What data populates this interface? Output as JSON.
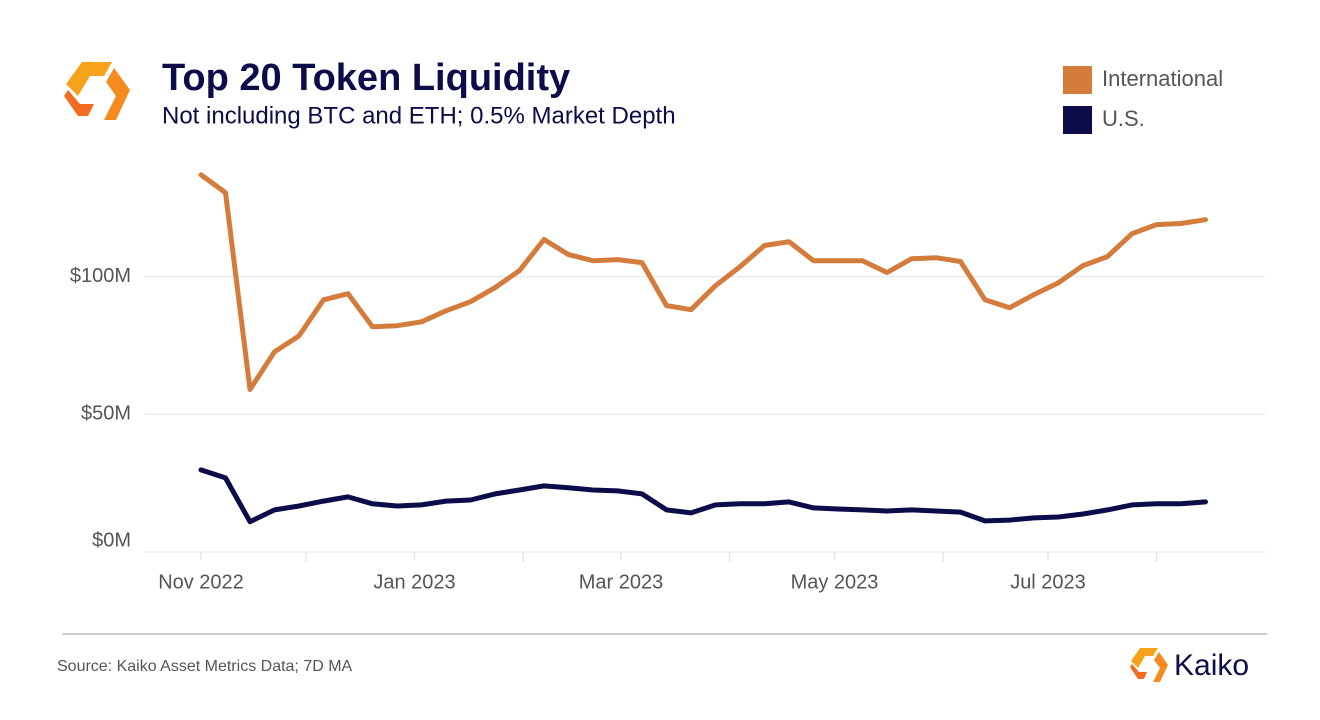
{
  "chart_data": {
    "type": "line",
    "title": "Top 20 Token Liquidity",
    "subtitle": "Not including BTC and ETH; 0.5% Market Depth",
    "source": "Source: Kaiko Asset Metrics Data; 7D MA",
    "brand": "Kaiko",
    "x": [
      "2022-11-01",
      "2022-11-08",
      "2022-11-15",
      "2022-11-22",
      "2022-11-29",
      "2022-12-06",
      "2022-12-13",
      "2022-12-20",
      "2022-12-27",
      "2023-01-03",
      "2023-01-10",
      "2023-01-17",
      "2023-01-24",
      "2023-01-31",
      "2023-02-07",
      "2023-02-14",
      "2023-02-21",
      "2023-02-28",
      "2023-03-07",
      "2023-03-14",
      "2023-03-21",
      "2023-03-28",
      "2023-04-04",
      "2023-04-11",
      "2023-04-18",
      "2023-04-25",
      "2023-05-02",
      "2023-05-09",
      "2023-05-16",
      "2023-05-23",
      "2023-05-30",
      "2023-06-06",
      "2023-06-13",
      "2023-06-20",
      "2023-06-27",
      "2023-07-04",
      "2023-07-11",
      "2023-07-18",
      "2023-07-25",
      "2023-08-01",
      "2023-08-08",
      "2023-08-15"
    ],
    "series": [
      {
        "name": "International",
        "color": "#d47c3c",
        "values": [
          137,
          130.5,
          59,
          72.7,
          78.5,
          91.6,
          93.8,
          81.8,
          82.2,
          83.6,
          87.6,
          90.9,
          96,
          102.2,
          113.5,
          108,
          105.8,
          106.2,
          105.1,
          89.5,
          88,
          96.7,
          103.6,
          111.3,
          112.7,
          105.8,
          105.8,
          105.8,
          101.5,
          106.5,
          106.9,
          105.5,
          91.6,
          88.7,
          93.5,
          97.8,
          104,
          107.3,
          115.6,
          118.9,
          119.3,
          120.7
        ]
      },
      {
        "name": "U.S.",
        "color": "#0c0c4a",
        "values": [
          29.8,
          26.9,
          11,
          15.3,
          16.7,
          18.5,
          20,
          17.5,
          16.7,
          17.1,
          18.5,
          18.9,
          21.1,
          22.5,
          24,
          23.3,
          22.5,
          22.2,
          21.1,
          15.3,
          14.2,
          17.1,
          17.5,
          17.5,
          18.2,
          16,
          15.6,
          15.3,
          14.9,
          15.3,
          14.9,
          14.5,
          11.3,
          11.6,
          12.4,
          12.7,
          13.8,
          15.3,
          17.1,
          17.5,
          17.5,
          18.2
        ]
      }
    ],
    "xlim": [
      "2022-10-16",
      "2023-09-01"
    ],
    "xticks": [
      {
        "value": "2022-11-01",
        "label": "Nov 2022"
      },
      {
        "value": "2023-01-01",
        "label": "Jan 2023"
      },
      {
        "value": "2023-03-01",
        "label": "Mar 2023"
      },
      {
        "value": "2023-05-01",
        "label": "May 2023"
      },
      {
        "value": "2023-07-01",
        "label": "Jul 2023"
      }
    ],
    "xminor_ticks": [
      "2022-12-01",
      "2023-02-01",
      "2023-04-01",
      "2023-06-01",
      "2023-08-01"
    ],
    "ylim": [
      0,
      146
    ],
    "yticks": [
      {
        "value": 0,
        "label": "$0M"
      },
      {
        "value": 50,
        "label": "$50M"
      },
      {
        "value": 100,
        "label": "$100M"
      }
    ],
    "grid": true,
    "legend": "top-right"
  }
}
